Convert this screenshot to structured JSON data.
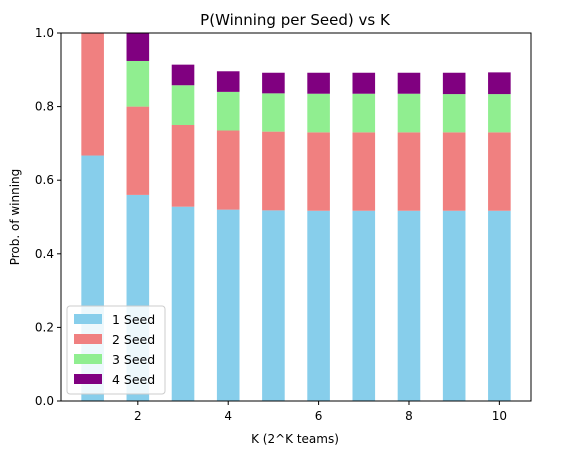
{
  "chart_data": {
    "type": "bar",
    "stacked": true,
    "title": "P(Winning per Seed) vs K",
    "xlabel": "K (2^K teams)",
    "ylabel": "Prob. of winning",
    "x": [
      1,
      2,
      3,
      4,
      5,
      6,
      7,
      8,
      9,
      10
    ],
    "xticks": [
      2,
      4,
      6,
      8,
      10
    ],
    "xlim": [
      0.3,
      10.7
    ],
    "ylim": [
      0,
      1.0
    ],
    "yticks": [
      0.0,
      0.2,
      0.4,
      0.6,
      0.8,
      1.0
    ],
    "grid": false,
    "legend_position": "lower-left",
    "series": [
      {
        "name": "1 Seed",
        "color": "#87ceeb",
        "values": [
          0.667,
          0.56,
          0.528,
          0.52,
          0.518,
          0.517,
          0.517,
          0.517,
          0.517,
          0.517
        ]
      },
      {
        "name": "2 Seed",
        "color": "#f08080",
        "values": [
          0.333,
          0.24,
          0.222,
          0.215,
          0.214,
          0.213,
          0.213,
          0.213,
          0.213,
          0.213
        ]
      },
      {
        "name": "3 Seed",
        "color": "#90ee90",
        "values": [
          0,
          0.124,
          0.108,
          0.105,
          0.104,
          0.105,
          0.105,
          0.105,
          0.104,
          0.104
        ]
      },
      {
        "name": "4 Seed",
        "color": "#800080",
        "values": [
          0,
          0.076,
          0.056,
          0.056,
          0.056,
          0.057,
          0.057,
          0.057,
          0.058,
          0.059
        ]
      }
    ]
  }
}
